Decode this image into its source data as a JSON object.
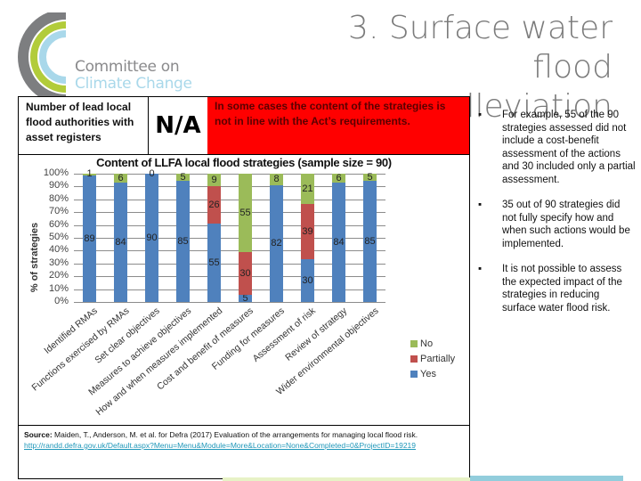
{
  "logo": {
    "line1": "Committee on",
    "line2": "Climate Change",
    "arc_colors": [
      "#7d7e80",
      "#b2cc3a",
      "#a9d8ea"
    ]
  },
  "header": {
    "title_line1": "3. Surface water flood",
    "title_line2": "alleviation"
  },
  "info_row": {
    "label": "Number of lead local flood authorities with asset registers",
    "value": "N/A",
    "note": "In some cases the content of the strategies is not in line with the Act’s requirements.",
    "note_bg": "#ff0000"
  },
  "chart_data": {
    "type": "bar",
    "stacked": true,
    "title": "Content of LLFA local flood strategies (sample size = 90)",
    "xlabel": "",
    "ylabel": "% of strategies",
    "ylim": [
      0,
      100
    ],
    "yticks": [
      "0%",
      "10%",
      "20%",
      "30%",
      "40%",
      "50%",
      "60%",
      "70%",
      "80%",
      "90%",
      "100%"
    ],
    "categories": [
      "Identified RMAs",
      "Functions exercised by RMAs",
      "Set clear objectives",
      "Measures to achieve objectives",
      "How and when measures implemented",
      "Cost and benefit of measures",
      "Funding for measures",
      "Assessment of risk",
      "Review of strategy",
      "Wider environmental objectives"
    ],
    "series": [
      {
        "name": "Yes",
        "color": "#4f81bd",
        "values": [
          89,
          84,
          90,
          85,
          55,
          5,
          82,
          30,
          84,
          85
        ]
      },
      {
        "name": "Partially",
        "color": "#c0504d",
        "values": [
          0,
          0,
          0,
          0,
          26,
          30,
          0,
          39,
          0,
          0
        ]
      },
      {
        "name": "No",
        "color": "#9bbb59",
        "values": [
          1,
          6,
          0,
          5,
          9,
          55,
          8,
          21,
          6,
          5
        ]
      }
    ],
    "data_labels": {
      "Yes": [
        "89",
        "84",
        "90",
        "85",
        "55",
        "5",
        "82",
        "30",
        "84",
        "85"
      ],
      "Partially": [
        "",
        "",
        "",
        "",
        "26",
        "30",
        "",
        "39",
        "",
        ""
      ],
      "No": [
        "1",
        "6",
        "0",
        "5",
        "9",
        "55",
        "8",
        "21",
        "6",
        "5"
      ]
    },
    "legend": [
      "No",
      "Partially",
      "Yes"
    ],
    "legend_position": "right",
    "grid": true
  },
  "source": {
    "label": "Source:",
    "text": " Maiden, T., Anderson, M. et al. for Defra (2017) Evaluation of the arrangements for managing local flood risk.",
    "link": "http://randd.defra.gov.uk/Default.aspx?Menu=Menu&Module=More&Location=None&Completed=0&ProjectID=19219"
  },
  "bullets": [
    {
      "marker": "▪",
      "text": "For example, 55 of the 90 strategies assessed did not include a cost-benefit assessment of the actions and 30 included only a partial assessment."
    },
    {
      "marker": "▪",
      "text": "35 out of 90 strategies did not fully specify how and when such actions would be implemented."
    },
    {
      "marker": "▪",
      "text": "It is not possible to assess the expected impact of the strategies in reducing surface water flood risk."
    }
  ]
}
